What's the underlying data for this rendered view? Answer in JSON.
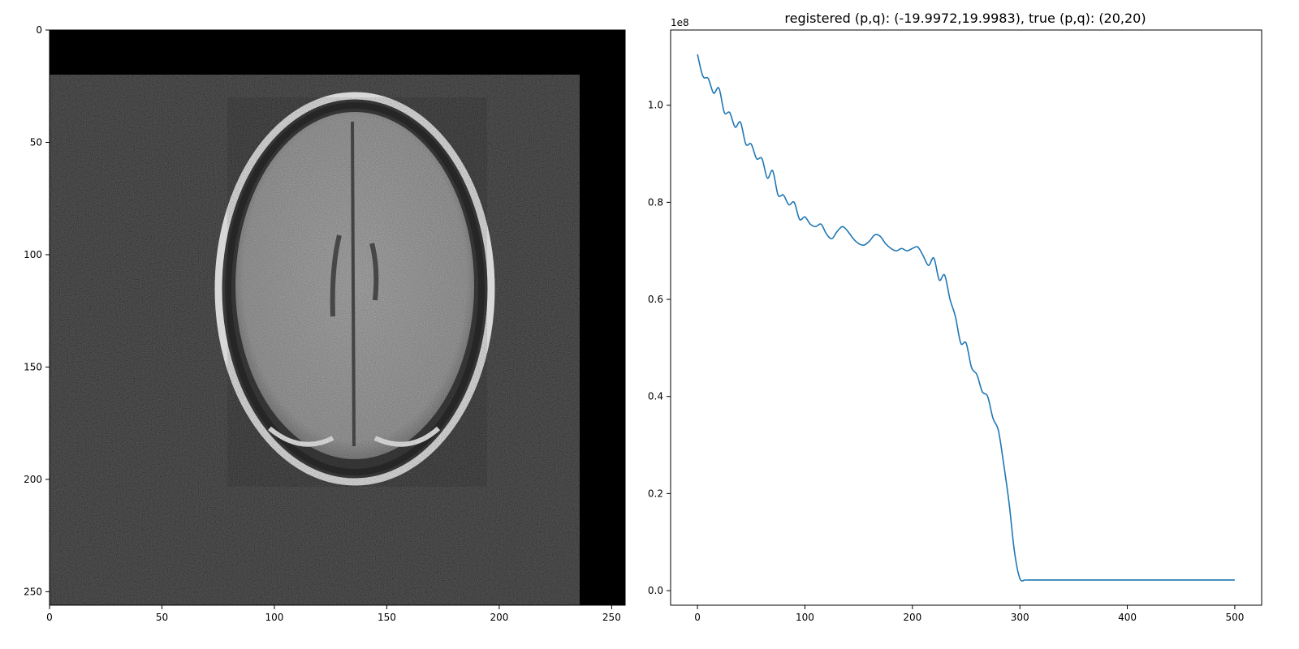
{
  "chart_data": [
    {
      "type": "image",
      "title": "",
      "xlabel": "",
      "ylabel": "",
      "xlim": [
        0,
        256
      ],
      "ylim": [
        256,
        0
      ],
      "xticks": [
        "0",
        "50",
        "100",
        "150",
        "200",
        "250"
      ],
      "yticks": [
        "0",
        "50",
        "100",
        "150",
        "200",
        "250"
      ],
      "content": "grayscale axial brain MRI slice with noise, shifted by 20 px right and 20 px down",
      "colormap": "gray",
      "colors": {
        "background": "#000000",
        "tissue": "#a9a9a9",
        "skull": "#dcdcdc"
      }
    },
    {
      "type": "line",
      "title": "registered (p,q): (-19.9972,19.9983), true (p,q): (20,20)",
      "xlabel": "",
      "ylabel": "",
      "offset_text": "1e8",
      "xlim": [
        -25,
        525
      ],
      "ylim": [
        -0.03,
        1.155
      ],
      "xticks": [
        "0",
        "100",
        "200",
        "300",
        "400",
        "500"
      ],
      "yticks": [
        "0.0",
        "0.2",
        "0.4",
        "0.6",
        "0.8",
        "1.0"
      ],
      "grid": false,
      "series": [
        {
          "color": "#1f77b4",
          "x": [
            0,
            5,
            10,
            15,
            20,
            25,
            30,
            35,
            40,
            45,
            50,
            55,
            60,
            65,
            70,
            75,
            80,
            85,
            90,
            95,
            100,
            105,
            110,
            115,
            120,
            125,
            130,
            135,
            140,
            145,
            150,
            155,
            160,
            165,
            170,
            175,
            180,
            185,
            190,
            195,
            200,
            205,
            210,
            215,
            220,
            225,
            230,
            235,
            240,
            245,
            250,
            255,
            260,
            265,
            270,
            275,
            280,
            285,
            290,
            295,
            300,
            305,
            310,
            315,
            320,
            325,
            330,
            335,
            340,
            345,
            350,
            355,
            360,
            365,
            370,
            375,
            380,
            385,
            390,
            395,
            400,
            405,
            410,
            413,
            416,
            419,
            422,
            425,
            428,
            430,
            435,
            440,
            460,
            480,
            500
          ],
          "values": [
            1.105,
            1.06,
            1.055,
            1.025,
            1.035,
            0.985,
            0.985,
            0.955,
            0.965,
            0.92,
            0.92,
            0.89,
            0.89,
            0.85,
            0.865,
            0.815,
            0.815,
            0.795,
            0.8,
            0.765,
            0.77,
            0.755,
            0.75,
            0.755,
            0.735,
            0.725,
            0.74,
            0.75,
            0.74,
            0.725,
            0.715,
            0.712,
            0.72,
            0.733,
            0.73,
            0.715,
            0.705,
            0.7,
            0.705,
            0.7,
            0.705,
            0.708,
            0.69,
            0.67,
            0.685,
            0.64,
            0.65,
            0.6,
            0.565,
            0.51,
            0.51,
            0.46,
            0.445,
            0.41,
            0.4,
            0.355,
            0.33,
            0.26,
            0.18,
            0.08,
            0.025,
            0.022,
            0.022,
            0.022,
            0.022,
            0.022,
            0.022,
            0.022,
            0.022,
            0.022,
            0.022,
            0.022,
            0.022,
            0.022,
            0.022,
            0.022,
            0.022,
            0.022,
            0.022,
            0.022,
            0.022,
            0.022,
            0.022,
            0.022,
            0.022,
            0.022,
            0.022,
            0.022,
            0.022,
            0.022,
            0.022,
            0.022,
            0.022,
            0.022,
            0.022
          ]
        }
      ]
    }
  ]
}
